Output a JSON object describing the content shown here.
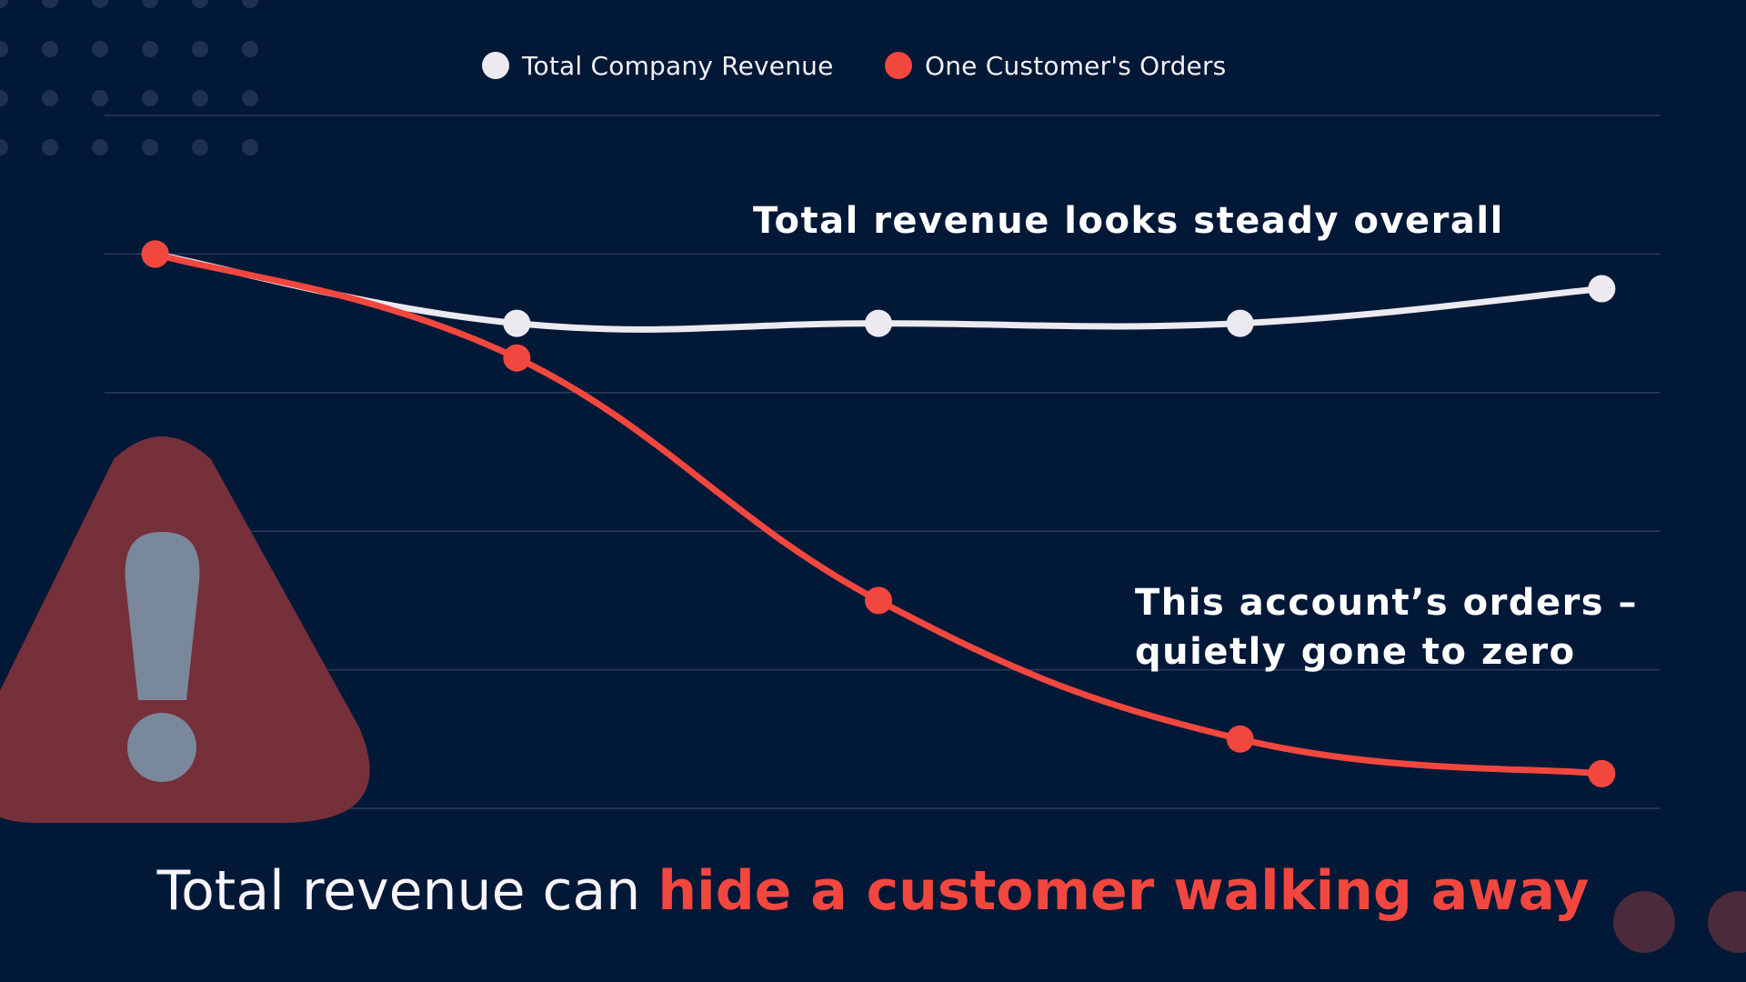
{
  "legend": {
    "items": [
      {
        "label": "Total Company Revenue",
        "color": "#ece9f0"
      },
      {
        "label": "One Customer's Orders",
        "color": "#f2473f"
      }
    ]
  },
  "annotations": {
    "total_line": "Total revenue looks steady overall",
    "customer_line_1": "This account’s orders –",
    "customer_line_2": "quietly gone to zero"
  },
  "headline": {
    "plain": "Total revenue can ",
    "accent": "hide a customer walking away"
  },
  "colors": {
    "background": "#021837",
    "total_series": "#ece9f0",
    "customer_series": "#f2473f",
    "gridline": "#2a3c5a",
    "warning_triangle": "#76303a",
    "warning_mark": "#7a889c",
    "dot_pattern": "#1f3150"
  },
  "icons": {
    "warning": "warning-triangle-icon"
  },
  "chart_data": {
    "type": "line",
    "x": [
      1,
      2,
      3,
      4,
      5
    ],
    "xlim": [
      0.86,
      5.16
    ],
    "ylim": [
      0,
      100
    ],
    "grid": true,
    "legend_position": "top-center",
    "series": [
      {
        "name": "Total Company Revenue",
        "color": "#ece9f0",
        "values": [
          80,
          70,
          70,
          70,
          75
        ]
      },
      {
        "name": "One Customer's Orders",
        "color": "#f2473f",
        "values": [
          80,
          65,
          30,
          10,
          5
        ]
      }
    ]
  }
}
